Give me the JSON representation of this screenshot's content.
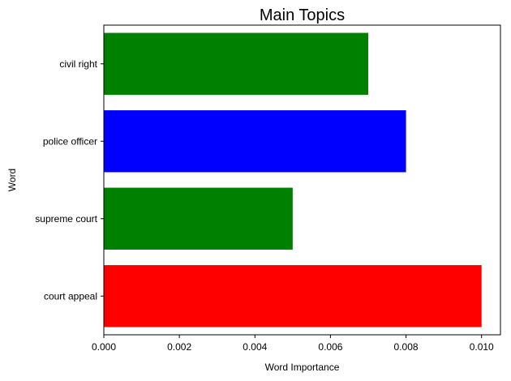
{
  "chart_data": {
    "type": "bar",
    "orientation": "horizontal",
    "title": "Main Topics",
    "xlabel": "Word Importance",
    "ylabel": "Word",
    "xlim": [
      0,
      0.0105
    ],
    "x_ticks": [
      "0.000",
      "0.002",
      "0.004",
      "0.006",
      "0.008",
      "0.010"
    ],
    "x_tick_values": [
      0,
      0.002,
      0.004,
      0.006,
      0.008,
      0.01
    ],
    "grid": false,
    "legend": "none",
    "bars": [
      {
        "category": "court appeal",
        "value": 0.01,
        "color": "#ff0000"
      },
      {
        "category": "supreme court",
        "value": 0.005,
        "color": "#008000"
      },
      {
        "category": "police officer",
        "value": 0.008,
        "color": "#0000ff"
      },
      {
        "category": "civil right",
        "value": 0.007,
        "color": "#008000"
      }
    ]
  }
}
